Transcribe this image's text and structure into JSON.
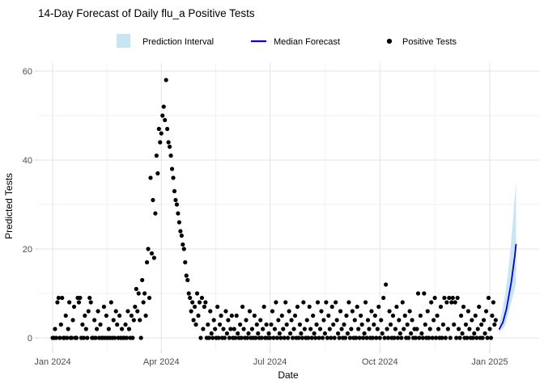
{
  "title": "14-Day Forecast of Daily flu_a Positive Tests",
  "legend": {
    "items": [
      {
        "label": "Prediction Interval",
        "type": "patch"
      },
      {
        "label": "Median Forecast",
        "type": "line"
      },
      {
        "label": "Positive Tests",
        "type": "point"
      }
    ]
  },
  "colors": {
    "band": "#C9E4F2",
    "median": "#0000E0",
    "point": "#000000",
    "grid_major": "#E3E3E3",
    "grid_minor": "#F0F0F0",
    "tick_mark": "#D6D6D6",
    "tick_text": "#4D4D4D"
  },
  "chart_data": {
    "type": "scatter",
    "title": "14-Day Forecast of Daily flu_a Positive Tests",
    "xlabel": "Date",
    "ylabel": "Predicted Tests",
    "ylim": [
      0,
      60
    ],
    "grid": true,
    "legend_position": "top",
    "x_start_date": "Jan 2024",
    "y_ticks": [
      0,
      20,
      40,
      60
    ],
    "y_minor": [
      10,
      30,
      50
    ],
    "x_ticks": [
      {
        "label": "Jan 2024",
        "day": 0
      },
      {
        "label": "Apr 2024",
        "day": 91
      },
      {
        "label": "Jul 2024",
        "day": 182
      },
      {
        "label": "Oct 2024",
        "day": 274
      },
      {
        "label": "Jan 2025",
        "day": 366
      }
    ],
    "x_minor_days": [
      45.5,
      136.5,
      228,
      320
    ],
    "series": [
      {
        "name": "Positive Tests",
        "type": "scatter",
        "start_day": 0,
        "values": [
          0,
          0,
          2,
          0,
          8,
          9,
          0,
          3,
          9,
          0,
          0,
          5,
          0,
          2,
          8,
          0,
          0,
          4,
          7,
          0,
          0,
          9,
          8,
          9,
          0,
          3,
          0,
          5,
          2,
          0,
          6,
          9,
          8,
          0,
          0,
          4,
          0,
          2,
          6,
          0,
          3,
          0,
          0,
          7,
          0,
          5,
          0,
          2,
          0,
          8,
          0,
          4,
          0,
          6,
          3,
          0,
          5,
          0,
          2,
          0,
          0,
          3,
          0,
          6,
          2,
          0,
          5,
          0,
          4,
          7,
          11,
          6,
          10,
          4,
          0,
          13,
          8,
          10,
          5,
          17,
          20,
          9,
          36,
          19,
          31,
          18,
          28,
          41,
          37,
          47,
          44,
          46,
          50,
          52,
          49,
          58,
          47,
          44,
          43,
          41,
          38,
          36,
          33,
          31,
          30,
          28,
          26,
          24,
          23,
          21,
          20,
          17,
          14,
          13,
          10,
          9,
          6,
          8,
          4,
          7,
          3,
          10,
          5,
          8,
          0,
          9,
          2,
          7,
          8,
          0,
          3,
          0,
          6,
          1,
          0,
          4,
          2,
          0,
          7,
          0,
          3,
          5,
          0,
          2,
          0,
          6,
          1,
          4,
          0,
          2,
          5,
          0,
          2,
          0,
          5,
          1,
          0,
          3,
          0,
          7,
          2,
          0,
          4,
          0,
          1,
          6,
          0,
          2,
          0,
          5,
          0,
          3,
          1,
          0,
          4,
          0,
          2,
          7,
          0,
          3,
          0,
          1,
          0,
          3,
          6,
          0,
          2,
          8,
          0,
          4,
          1,
          0,
          5,
          2,
          0,
          8,
          3,
          0,
          6,
          1,
          4,
          0,
          2,
          5,
          0,
          7,
          0,
          3,
          1,
          0,
          8,
          2,
          0,
          4,
          0,
          7,
          2,
          0,
          5,
          1,
          0,
          3,
          8,
          0,
          2,
          6,
          0,
          4,
          1,
          8,
          0,
          5,
          2,
          0,
          7,
          3,
          0,
          8,
          4,
          1,
          0,
          6,
          2,
          0,
          3,
          0,
          5,
          1,
          8,
          0,
          2,
          6,
          0,
          4,
          0,
          7,
          2,
          0,
          5,
          3,
          0,
          1,
          8,
          0,
          4,
          2,
          0,
          6,
          0,
          3,
          5,
          0,
          2,
          7,
          0,
          4,
          1,
          9,
          0,
          12,
          2,
          0,
          6,
          3,
          0,
          5,
          0,
          2,
          7,
          0,
          4,
          1,
          0,
          8,
          2,
          5,
          0,
          3,
          0,
          6,
          1,
          4,
          0,
          2,
          0,
          2,
          10,
          0,
          5,
          1,
          0,
          10,
          3,
          0,
          6,
          0,
          2,
          8,
          0,
          4,
          9,
          0,
          5,
          2,
          0,
          7,
          0,
          3,
          9,
          0,
          8,
          2,
          9,
          0,
          8,
          9,
          3,
          8,
          0,
          9,
          2,
          0,
          5,
          1,
          7,
          0,
          3,
          0,
          6,
          2,
          0,
          4,
          0,
          1,
          5,
          0,
          2,
          7,
          0,
          3,
          0,
          4,
          1,
          6,
          0,
          9,
          2,
          0,
          5,
          8,
          3,
          4
        ]
      },
      {
        "name": "Median Forecast",
        "type": "line",
        "start_day": 374,
        "values": [
          2,
          2.5,
          3,
          3.5,
          4.5,
          5.5,
          6.5,
          8,
          9.5,
          11,
          12.5,
          14.5,
          16.5,
          18.5,
          21
        ]
      },
      {
        "name": "Prediction Interval",
        "type": "band",
        "start_day": 374,
        "upper": [
          3.5,
          4.5,
          5.5,
          7,
          8.5,
          10,
          12,
          14,
          16.5,
          19,
          22,
          25,
          28.5,
          32,
          35
        ],
        "lower": [
          1,
          1.5,
          2,
          2,
          2.5,
          3,
          4,
          5,
          6,
          7,
          8,
          9,
          10,
          11,
          12.5
        ]
      }
    ]
  }
}
